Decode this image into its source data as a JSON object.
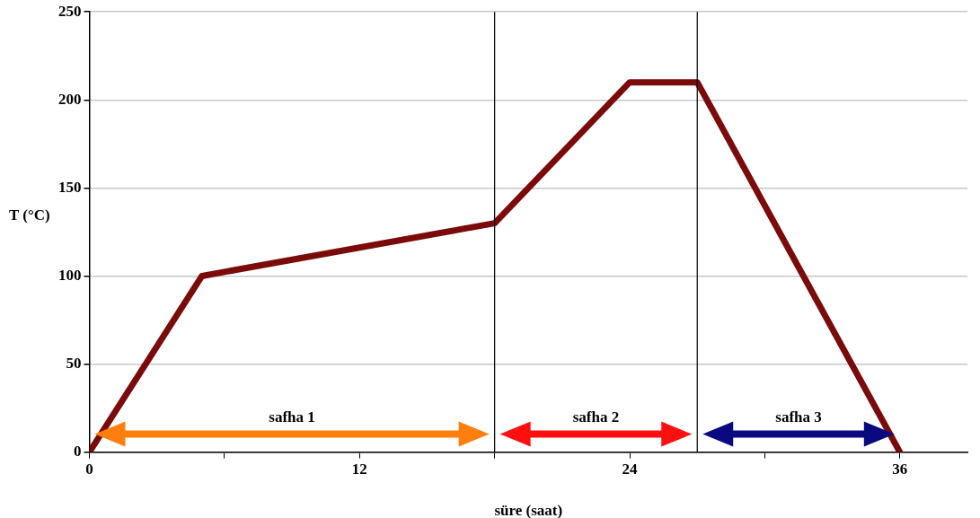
{
  "chart_data": {
    "type": "line",
    "xlabel": "süre (saat)",
    "ylabel": "T (°C)",
    "x": [
      0,
      5,
      18,
      24,
      27,
      36
    ],
    "series": [
      {
        "color": "#7b0a0a",
        "values": [
          0,
          100,
          130,
          210,
          210,
          0
        ]
      }
    ],
    "xlim": [
      0,
      39
    ],
    "xticks": [
      0,
      {
        "value": 6,
        "label": null
      },
      12,
      {
        "value": 18,
        "label": null
      },
      24,
      {
        "value": 30,
        "label": null
      },
      36
    ],
    "ylim": [
      0,
      250
    ],
    "yticks": [
      0,
      50,
      100,
      150,
      200,
      250
    ],
    "grid": "y",
    "legend": false,
    "marker": "none",
    "line_style": "solid",
    "ref_lines": [
      {
        "axis": "x",
        "value": 18,
        "color": "#000000"
      },
      {
        "axis": "x",
        "value": 27,
        "color": "#000000"
      }
    ],
    "annotations": [
      "safha 1",
      "safha 2",
      "safha 3"
    ]
  }
}
